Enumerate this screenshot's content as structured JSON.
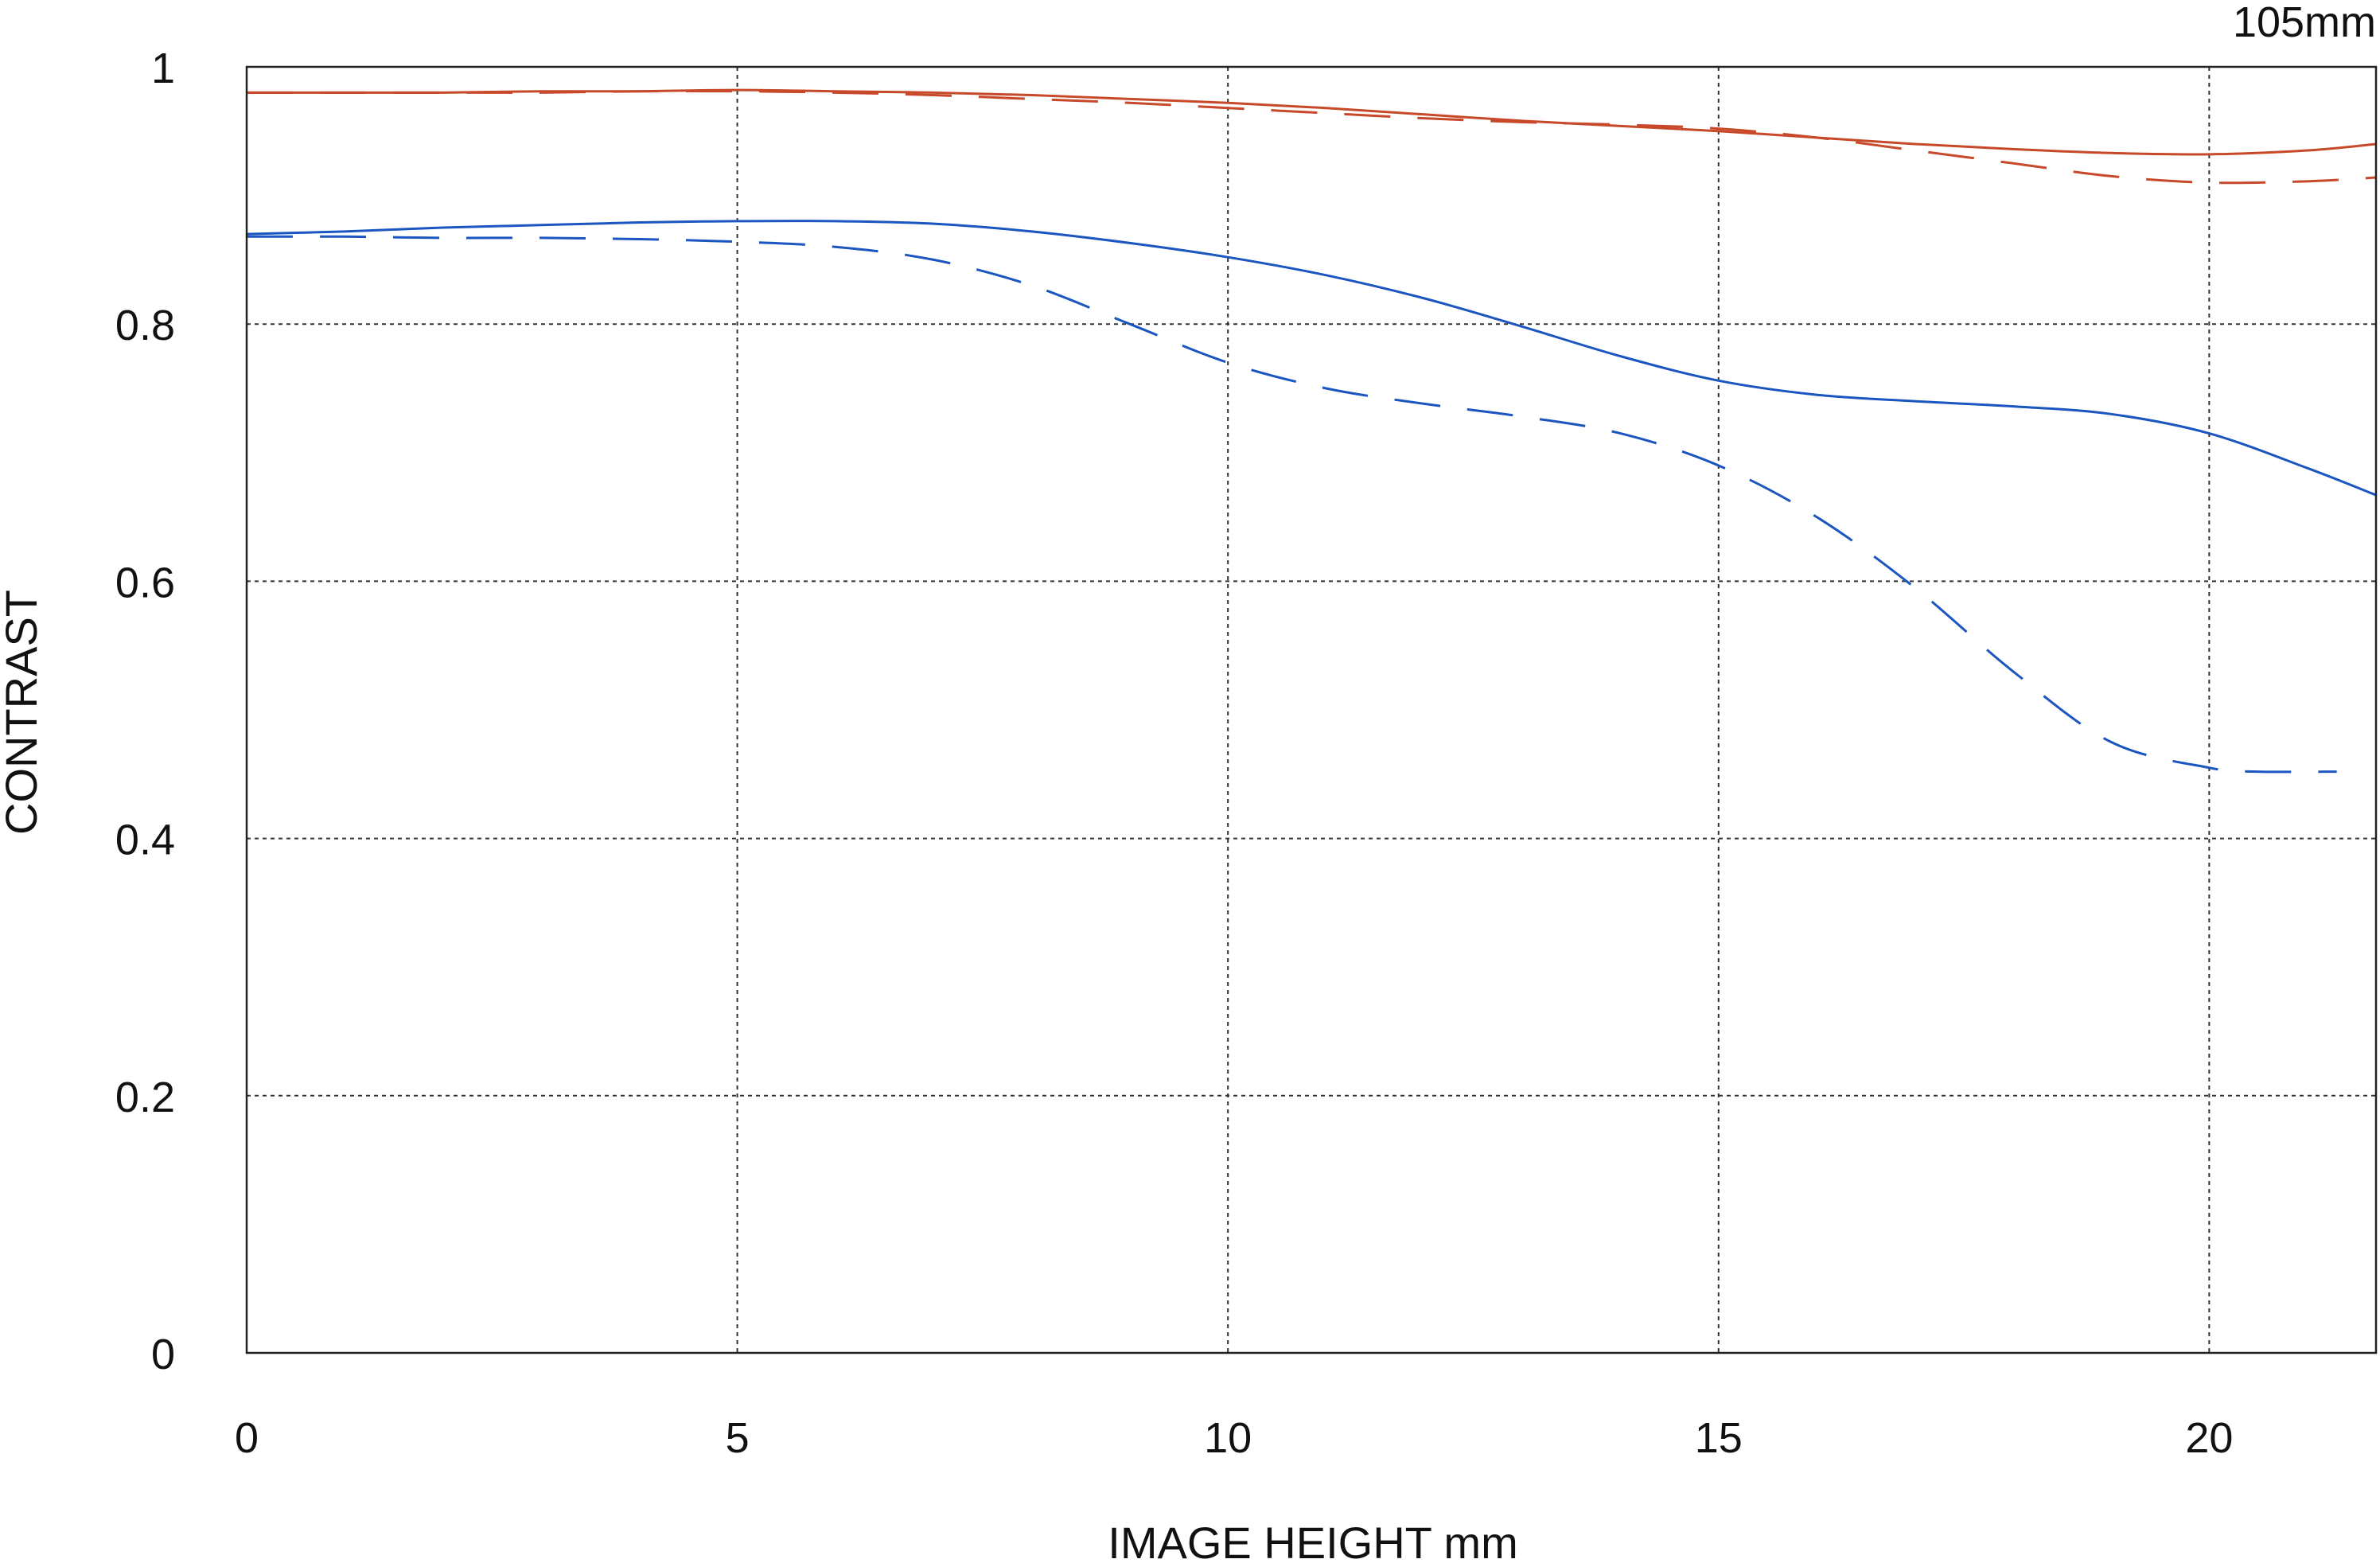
{
  "chart_data": {
    "type": "line",
    "title": "105mm",
    "xlabel": "IMAGE HEIGHT  mm",
    "ylabel": "CONTRAST",
    "xlim": [
      0,
      21.7
    ],
    "ylim": [
      0,
      1
    ],
    "x_ticks": [
      "0",
      "5",
      "10",
      "15",
      "20"
    ],
    "y_ticks": [
      "0",
      "0.2",
      "0.4",
      "0.6",
      "0.8",
      "1"
    ],
    "grid": true,
    "series": [
      {
        "color": "#c8492a",
        "style": "solid",
        "x": [
          0,
          1,
          2,
          3,
          4,
          5,
          6,
          7,
          8,
          9,
          10,
          11,
          12,
          13,
          14,
          15,
          16,
          17,
          18,
          19,
          20,
          21,
          21.7
        ],
        "y": [
          0.98,
          0.98,
          0.98,
          0.981,
          0.981,
          0.982,
          0.981,
          0.98,
          0.978,
          0.975,
          0.972,
          0.968,
          0.963,
          0.958,
          0.954,
          0.95,
          0.945,
          0.94,
          0.936,
          0.933,
          0.932,
          0.935,
          0.94
        ]
      },
      {
        "color": "#c8492a",
        "style": "dashed",
        "x": [
          0,
          1,
          2,
          3,
          4,
          5,
          6,
          7,
          8,
          9,
          10,
          11,
          12,
          13,
          14,
          15,
          16,
          17,
          18,
          19,
          20,
          21,
          21.7
        ],
        "y": [
          0.98,
          0.98,
          0.98,
          0.98,
          0.981,
          0.981,
          0.98,
          0.978,
          0.975,
          0.972,
          0.968,
          0.964,
          0.96,
          0.957,
          0.955,
          0.952,
          0.945,
          0.935,
          0.925,
          0.915,
          0.91,
          0.911,
          0.914
        ]
      },
      {
        "color": "#1a55c0",
        "style": "solid",
        "x": [
          0,
          1,
          2,
          3,
          4,
          5,
          6,
          7,
          8,
          9,
          10,
          11,
          12,
          13,
          14,
          15,
          16,
          17,
          18,
          19,
          20,
          21,
          21.7
        ],
        "y": [
          0.87,
          0.872,
          0.875,
          0.877,
          0.879,
          0.88,
          0.88,
          0.878,
          0.872,
          0.863,
          0.852,
          0.838,
          0.82,
          0.798,
          0.775,
          0.756,
          0.745,
          0.74,
          0.736,
          0.73,
          0.715,
          0.688,
          0.667
        ]
      },
      {
        "color": "#1a55c0",
        "style": "dashed",
        "x": [
          0,
          1,
          2,
          3,
          4,
          5,
          6,
          7,
          8,
          9,
          10,
          11,
          12,
          13,
          14,
          15,
          16,
          17,
          18,
          19,
          20,
          20.5,
          21.3
        ],
        "y": [
          0.868,
          0.868,
          0.867,
          0.867,
          0.866,
          0.864,
          0.86,
          0.85,
          0.83,
          0.8,
          0.77,
          0.75,
          0.738,
          0.728,
          0.715,
          0.69,
          0.65,
          0.595,
          0.53,
          0.475,
          0.455,
          0.452,
          0.452
        ]
      }
    ]
  }
}
